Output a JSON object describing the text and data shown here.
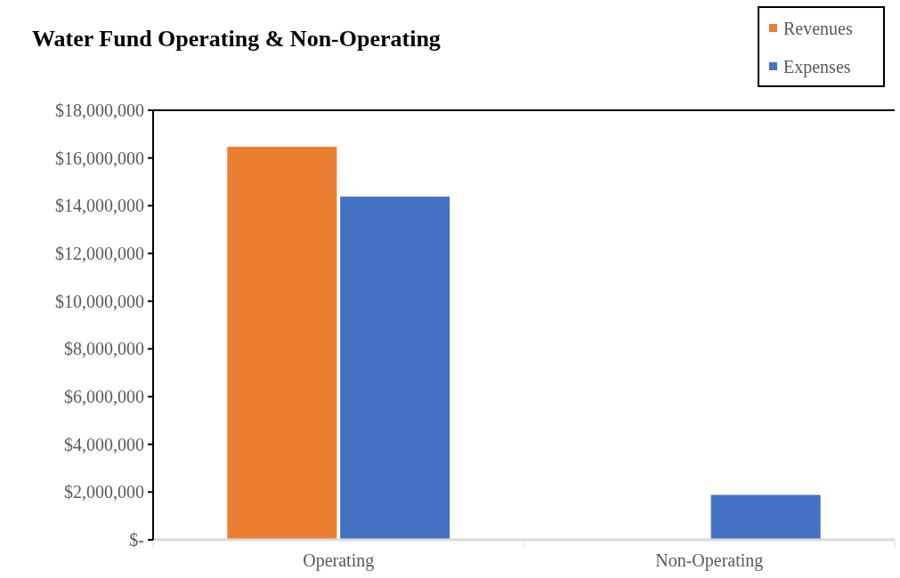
{
  "chart_data": {
    "type": "bar",
    "title": "Water Fund  Operating & Non-Operating",
    "categories": [
      "Operating",
      "Non-Operating"
    ],
    "series": [
      {
        "name": "Revenues",
        "color": "#ed7d31",
        "values": [
          16470000,
          0
        ]
      },
      {
        "name": "Expenses",
        "color": "#4472c4",
        "values": [
          14380000,
          1880000
        ]
      }
    ],
    "ylim": [
      0,
      18000000
    ],
    "yticks": [
      {
        "value": 0,
        "label": "$-"
      },
      {
        "value": 2000000,
        "label": "$2,000,000"
      },
      {
        "value": 4000000,
        "label": "$4,000,000"
      },
      {
        "value": 6000000,
        "label": "$6,000,000"
      },
      {
        "value": 8000000,
        "label": "$8,000,000"
      },
      {
        "value": 10000000,
        "label": "$10,000,000"
      },
      {
        "value": 12000000,
        "label": "$12,000,000"
      },
      {
        "value": 14000000,
        "label": "$14,000,000"
      },
      {
        "value": 16000000,
        "label": "$16,000,000"
      },
      {
        "value": 18000000,
        "label": "$18,000,000"
      }
    ],
    "grid": false,
    "legend": "top right"
  }
}
